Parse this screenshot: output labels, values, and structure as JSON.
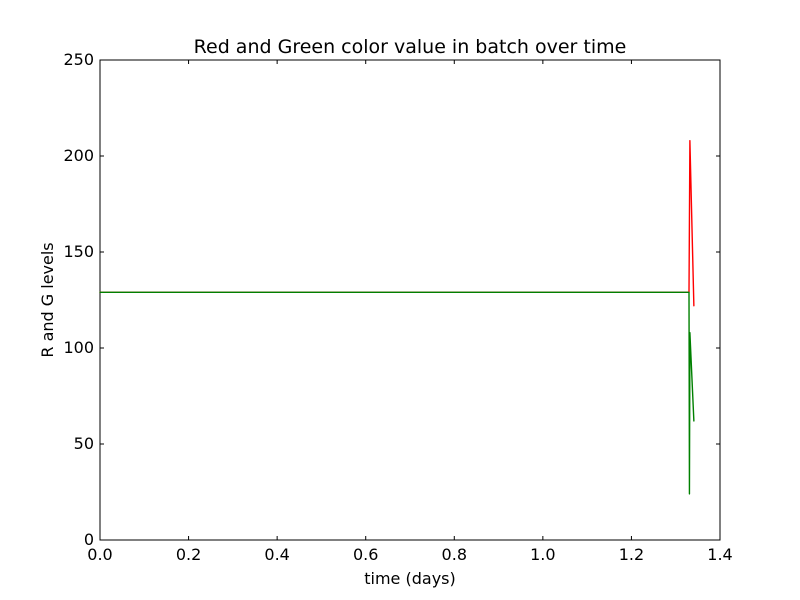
{
  "chart_data": {
    "type": "line",
    "title": "Red and Green color value in batch over time",
    "xlabel": "time (days)",
    "ylabel": "R and G levels",
    "xlim": [
      0.0,
      1.4
    ],
    "ylim": [
      0,
      250
    ],
    "x_ticks": [
      "0.0",
      "0.2",
      "0.4",
      "0.6",
      "0.8",
      "1.0",
      "1.2",
      "1.4"
    ],
    "y_ticks": [
      "0",
      "50",
      "100",
      "150",
      "200",
      "250"
    ],
    "grid": false,
    "series": [
      {
        "color": "#ff0000",
        "x": [
          0.0,
          1.33,
          1.332,
          1.341
        ],
        "y": [
          129,
          129,
          208,
          122
        ]
      },
      {
        "color": "#008000",
        "x": [
          0.0,
          1.33,
          1.331,
          1.332,
          1.341
        ],
        "y": [
          129,
          129,
          24,
          108,
          62
        ]
      }
    ]
  }
}
